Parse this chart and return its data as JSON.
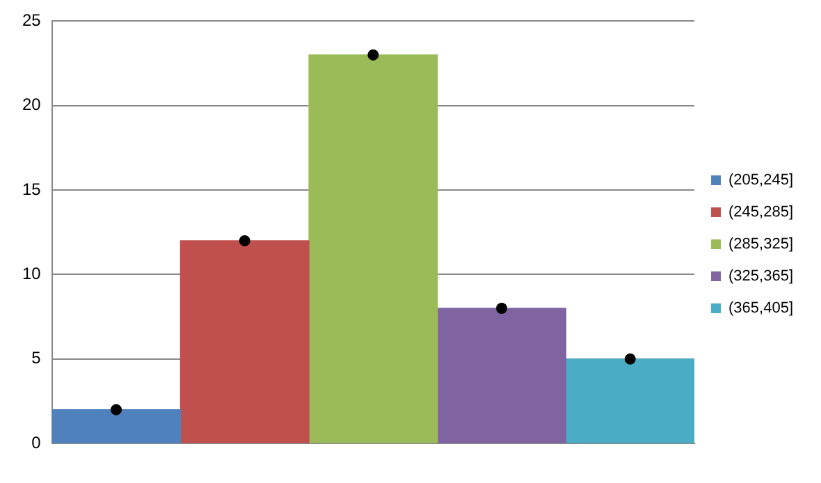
{
  "chart_data": {
    "type": "bar",
    "categories": [
      null,
      null,
      null,
      null,
      null
    ],
    "series": [
      {
        "name": "(205,245]",
        "color": "#4f81bd",
        "values": [
          2,
          null,
          null,
          null,
          null
        ]
      },
      {
        "name": "(245,285]",
        "color": "#c0504d",
        "values": [
          null,
          12,
          null,
          null,
          null
        ]
      },
      {
        "name": "(285,325]",
        "color": "#9bbb59",
        "values": [
          null,
          null,
          23,
          null,
          null
        ]
      },
      {
        "name": "(325,365]",
        "color": "#8064a2",
        "values": [
          null,
          null,
          null,
          8,
          null
        ]
      },
      {
        "name": "(365,405]",
        "color": "#4bacc6",
        "values": [
          null,
          null,
          null,
          null,
          5
        ]
      },
      {
        "type": "scatter",
        "color": "#000000",
        "values": [
          2,
          12,
          23,
          8,
          5
        ]
      }
    ],
    "ylim": [
      0,
      25
    ],
    "yticks": [
      0,
      5,
      10,
      15,
      20,
      25
    ],
    "grid": "y",
    "legend": "right",
    "marker": "circle"
  }
}
